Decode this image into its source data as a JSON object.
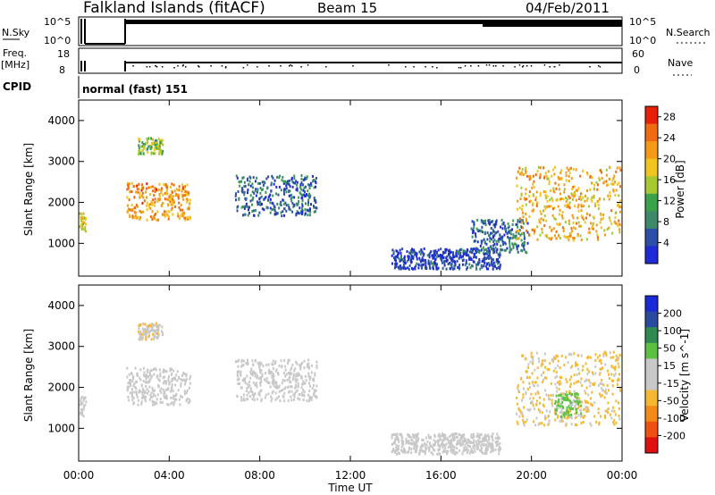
{
  "header": {
    "station": "Falkland Islands (fitACF)",
    "beam": "Beam 15",
    "date": "04/Feb/2011"
  },
  "panels": {
    "nsky": {
      "left_label": "N.Sky",
      "left_ticks": [
        "10^5",
        "10^0"
      ],
      "right_ticks": [
        "10^5",
        "10^0"
      ],
      "right_label": "N.Search"
    },
    "freq": {
      "left_label_1": "Freq.",
      "left_label_2": "[MHz]",
      "left_ticks": [
        "18",
        "8"
      ],
      "right_ticks": [
        "60",
        "0"
      ],
      "right_label": "Nave"
    },
    "cpid": {
      "label": "CPID",
      "value": "normal (fast) 151"
    }
  },
  "colors": {
    "power_scale": [
      "#1f2bd6",
      "#2b4fa6",
      "#3d8a6a",
      "#3aa34a",
      "#a8c830",
      "#f2c41e",
      "#f49a16",
      "#ef6a10",
      "#e8200a"
    ],
    "velocity_scale": [
      "#e01010",
      "#f05010",
      "#f48a18",
      "#f6b830",
      "#c8c8c8",
      "#c8c8c8",
      "#5cc040",
      "#2e8a50",
      "#2a4aa0",
      "#1a2ad6"
    ]
  },
  "chart_data": [
    {
      "type": "heatmap",
      "title": "Power",
      "xlabel": "",
      "ylabel": "Slant Range [km]",
      "x_ticks": [
        "00:00",
        "04:00",
        "08:00",
        "12:00",
        "16:00",
        "20:00",
        "00:00"
      ],
      "y_ticks": [
        "1000",
        "2000",
        "3000",
        "4000"
      ],
      "xlim": [
        0,
        24
      ],
      "ylim": [
        200,
        4500
      ],
      "colorbar": {
        "label": "Power [dB]",
        "ticks": [
          "4",
          "8",
          "12",
          "16",
          "20",
          "24",
          "28"
        ],
        "range": [
          0,
          30
        ]
      },
      "regions": [
        {
          "t": [
            0.0,
            0.3
          ],
          "r": [
            1300,
            1800
          ],
          "value": 16
        },
        {
          "t": [
            2.1,
            4.9
          ],
          "r": [
            1600,
            2500
          ],
          "value": 22
        },
        {
          "t": [
            2.6,
            3.7
          ],
          "r": [
            3200,
            3600
          ],
          "value": 14
        },
        {
          "t": [
            6.9,
            10.5
          ],
          "r": [
            1700,
            2700
          ],
          "value": 6
        },
        {
          "t": [
            13.8,
            18.6
          ],
          "r": [
            400,
            900
          ],
          "value": 3
        },
        {
          "t": [
            17.3,
            19.8
          ],
          "r": [
            800,
            1600
          ],
          "value": 6
        },
        {
          "t": [
            19.3,
            23.9
          ],
          "r": [
            1100,
            2900
          ],
          "value": 20
        }
      ]
    },
    {
      "type": "heatmap",
      "title": "Velocity",
      "xlabel": "Time UT",
      "ylabel": "Slant Range [km]",
      "x_ticks": [
        "00:00",
        "04:00",
        "08:00",
        "12:00",
        "16:00",
        "20:00",
        "00:00"
      ],
      "y_ticks": [
        "1000",
        "2000",
        "3000",
        "4000"
      ],
      "xlim": [
        0,
        24
      ],
      "ylim": [
        200,
        4500
      ],
      "colorbar": {
        "label": "Velocity [m s^-1]",
        "ticks": [
          "200",
          "100",
          "50",
          "15",
          "-15",
          "-50",
          "-100",
          "-200"
        ],
        "range": [
          -250,
          250
        ]
      },
      "regions": [
        {
          "t": [
            0.0,
            0.3
          ],
          "r": [
            1300,
            1800
          ],
          "value": 0
        },
        {
          "t": [
            2.1,
            4.9
          ],
          "r": [
            1600,
            2500
          ],
          "value": 0
        },
        {
          "t": [
            2.6,
            3.7
          ],
          "r": [
            3200,
            3600
          ],
          "value": -40
        },
        {
          "t": [
            6.9,
            10.5
          ],
          "r": [
            1700,
            2700
          ],
          "value": 0
        },
        {
          "t": [
            13.8,
            18.6
          ],
          "r": [
            400,
            900
          ],
          "value": 0
        },
        {
          "t": [
            19.3,
            23.9
          ],
          "r": [
            1100,
            2900
          ],
          "value": -60
        },
        {
          "t": [
            21.0,
            22.2
          ],
          "r": [
            1300,
            1900
          ],
          "value": 60
        }
      ]
    }
  ]
}
